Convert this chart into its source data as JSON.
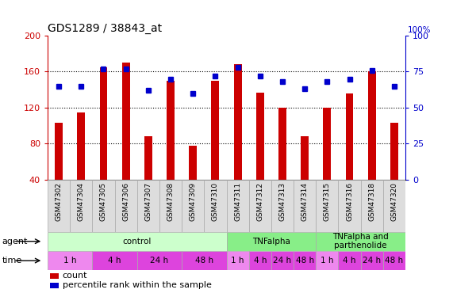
{
  "title": "GDS1289 / 38843_at",
  "samples": [
    "GSM47302",
    "GSM47304",
    "GSM47305",
    "GSM47306",
    "GSM47307",
    "GSM47308",
    "GSM47309",
    "GSM47310",
    "GSM47311",
    "GSM47312",
    "GSM47313",
    "GSM47314",
    "GSM47315",
    "GSM47316",
    "GSM47318",
    "GSM47320"
  ],
  "counts": [
    103,
    115,
    165,
    170,
    88,
    150,
    78,
    150,
    168,
    137,
    120,
    88,
    120,
    136,
    160,
    103
  ],
  "percentiles": [
    65,
    65,
    77,
    77,
    62,
    70,
    60,
    72,
    78,
    72,
    68,
    63,
    68,
    70,
    76,
    65
  ],
  "ylim_left": [
    40,
    200
  ],
  "ylim_right": [
    0,
    100
  ],
  "yticks_left": [
    40,
    80,
    120,
    160,
    200
  ],
  "yticks_right": [
    0,
    25,
    50,
    75,
    100
  ],
  "bar_color": "#cc0000",
  "dot_color": "#0000cc",
  "bar_width": 0.35,
  "ylabel_left_color": "#cc0000",
  "ylabel_right_color": "#0000cc",
  "grid_dotted_vals": [
    80,
    120,
    160
  ],
  "agent_groups": [
    {
      "label": "control",
      "start": 0,
      "end": 8,
      "color": "#ccffcc"
    },
    {
      "label": "TNFalpha",
      "start": 8,
      "end": 12,
      "color": "#88ee88"
    },
    {
      "label": "TNFalpha and\nparthenolide",
      "start": 12,
      "end": 16,
      "color": "#88ee88"
    }
  ],
  "time_groups": [
    {
      "label": "1 h",
      "start": 0,
      "end": 2,
      "color": "#ee88ee"
    },
    {
      "label": "4 h",
      "start": 2,
      "end": 4,
      "color": "#dd44dd"
    },
    {
      "label": "24 h",
      "start": 4,
      "end": 6,
      "color": "#dd44dd"
    },
    {
      "label": "48 h",
      "start": 6,
      "end": 8,
      "color": "#dd44dd"
    },
    {
      "label": "1 h",
      "start": 8,
      "end": 9,
      "color": "#ee88ee"
    },
    {
      "label": "4 h",
      "start": 9,
      "end": 10,
      "color": "#dd44dd"
    },
    {
      "label": "24 h",
      "start": 10,
      "end": 11,
      "color": "#dd44dd"
    },
    {
      "label": "48 h",
      "start": 11,
      "end": 12,
      "color": "#dd44dd"
    },
    {
      "label": "1 h",
      "start": 12,
      "end": 13,
      "color": "#ee88ee"
    },
    {
      "label": "4 h",
      "start": 13,
      "end": 14,
      "color": "#dd44dd"
    },
    {
      "label": "24 h",
      "start": 14,
      "end": 15,
      "color": "#dd44dd"
    },
    {
      "label": "48 h",
      "start": 15,
      "end": 16,
      "color": "#dd44dd"
    }
  ],
  "xtick_bg": "#dddddd",
  "xtick_divider_color": "#aaaaaa",
  "spine_color": "#aaaaaa"
}
